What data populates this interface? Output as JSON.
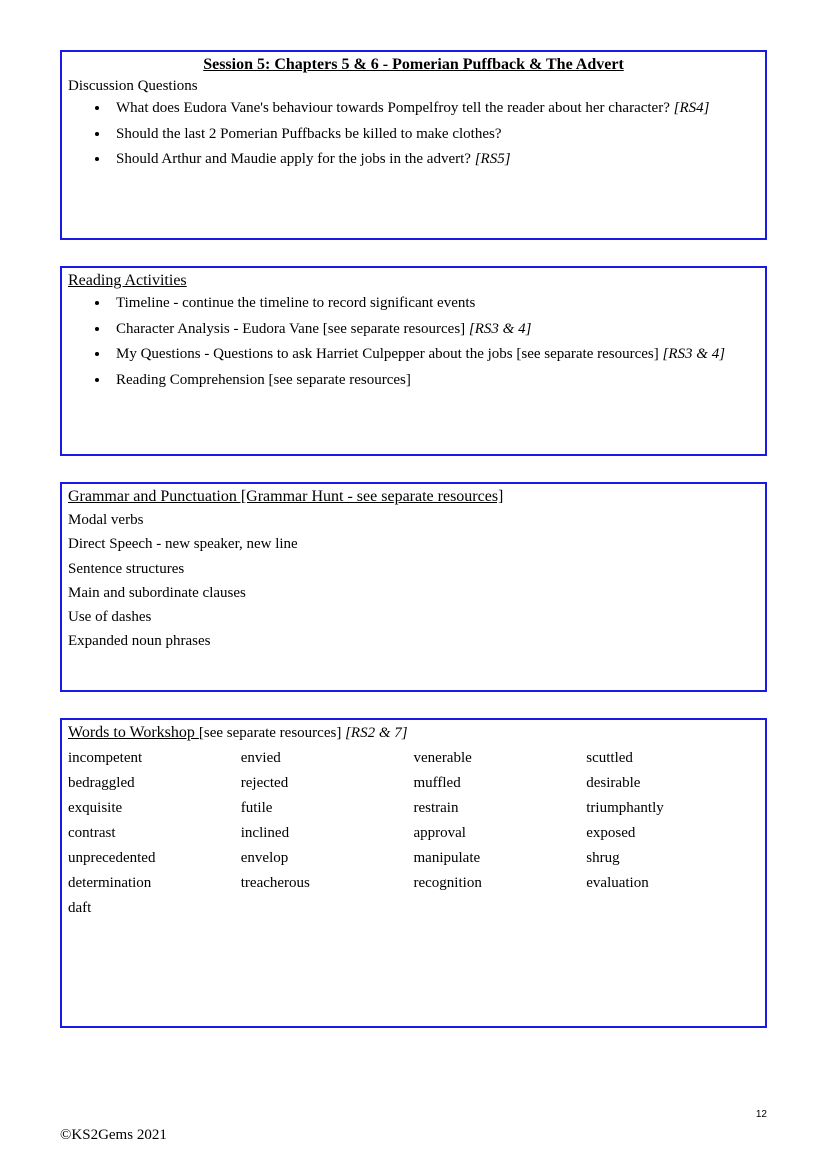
{
  "session_title": "Session 5: Chapters 5 & 6 - Pomerian Puffback & The Advert",
  "discussion": {
    "heading": "Discussion Questions",
    "items": [
      {
        "text": "What does Eudora Vane's behaviour towards Pompelfroy tell the reader about her character?",
        "ref": "[RS4]"
      },
      {
        "text": "Should the last 2 Pomerian Puffbacks be killed to make clothes?",
        "ref": ""
      },
      {
        "text": "Should Arthur and Maudie apply for the jobs in the advert?",
        "ref": "[RS5]"
      }
    ]
  },
  "reading": {
    "heading": "Reading Activities",
    "items": [
      {
        "text": "Timeline - continue the timeline to record significant events",
        "ref": ""
      },
      {
        "text": "Character Analysis -  Eudora Vane [see separate resources]",
        "ref": "[RS3 & 4]"
      },
      {
        "text": "My Questions - Questions to ask Harriet Culpepper about the jobs [see separate resources]",
        "ref": "[RS3 & 4]"
      },
      {
        "text": "Reading Comprehension [see separate resources]",
        "ref": ""
      }
    ]
  },
  "grammar": {
    "heading": "Grammar and Punctuation [Grammar Hunt - see separate resources]",
    "items": [
      "Modal verbs",
      "Direct Speech - new speaker, new line",
      "Sentence structures",
      "Main and subordinate clauses",
      "Use of dashes",
      "Expanded noun phrases"
    ]
  },
  "words": {
    "heading_main": "Words to Workshop ",
    "heading_extra": "[see separate resources]",
    "heading_ref": "[RS2 & 7]",
    "rows": [
      [
        "incompetent",
        "envied",
        "venerable",
        "scuttled"
      ],
      [
        "bedraggled",
        "rejected",
        "muffled",
        "desirable"
      ],
      [
        "exquisite",
        "futile",
        "restrain",
        "triumphantly"
      ],
      [
        "contrast",
        "inclined",
        "approval",
        "exposed"
      ],
      [
        "unprecedented",
        "envelop",
        "manipulate",
        "shrug"
      ],
      [
        "determination",
        "treacherous",
        "recognition",
        "evaluation"
      ],
      [
        "daft",
        "",
        "",
        ""
      ]
    ]
  },
  "page_number": "12",
  "copyright": "©KS2Gems 2021"
}
